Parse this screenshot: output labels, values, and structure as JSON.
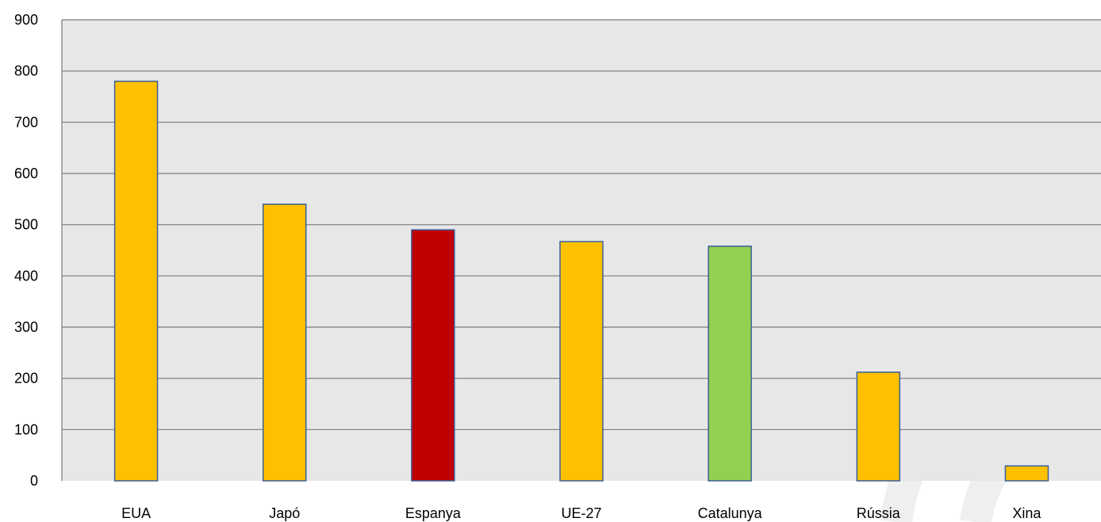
{
  "chart_data": {
    "type": "bar",
    "title": "",
    "xlabel": "",
    "ylabel": "",
    "categories": [
      "EUA",
      "Japó",
      "Espanya",
      "UE-27",
      "Catalunya",
      "Rússia",
      "Xina"
    ],
    "values": [
      780,
      540,
      490,
      467,
      458,
      212,
      29
    ],
    "ylim": [
      0,
      900
    ],
    "yticks": [
      0,
      100,
      200,
      300,
      400,
      500,
      600,
      700,
      800,
      900
    ],
    "grid": true,
    "legend": "none",
    "colors": {
      "default_bar": "#FFC000",
      "highlight_bars": {
        "Espanya": "#C00000",
        "Catalunya": "#92D050"
      },
      "bar_outline": "#3A5F9A",
      "plot_background": "#E7E7E7",
      "gridline": "#7A7A7A"
    }
  }
}
